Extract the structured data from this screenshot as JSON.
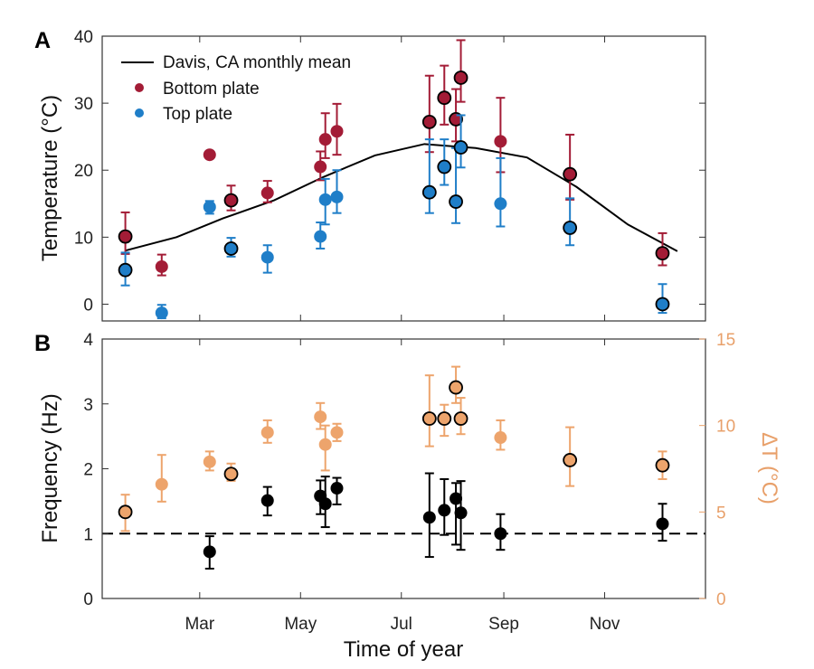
{
  "chart_data": [
    {
      "panel": "A",
      "type": "scatter",
      "ylabel": "Temperature (°C)",
      "ylim": [
        -2.5,
        40
      ],
      "yticks": [
        0,
        10,
        20,
        30,
        40
      ],
      "xlim": [
        1,
        366
      ],
      "legend": {
        "position": "top-left",
        "entries": [
          "Davis, CA monthly mean",
          "Bottom plate",
          "Top plate"
        ]
      },
      "series": [
        {
          "name": "Davis, CA monthly mean",
          "kind": "line",
          "color": "#000000",
          "x": [
            15,
            46,
            74,
            105,
            135,
            166,
            196,
            227,
            258,
            288,
            319,
            349
          ],
          "y": [
            8,
            10,
            12.8,
            15.5,
            19,
            22.2,
            23.9,
            23.3,
            21.9,
            17.5,
            11.9,
            7.9
          ]
        },
        {
          "name": "Bottom plate",
          "kind": "points",
          "color": "#a31c36",
          "points": [
            {
              "x": 15,
              "y": 10.1,
              "lo": 7.5,
              "hi": 13.7,
              "outlined": true
            },
            {
              "x": 37,
              "y": 5.6,
              "lo": 4.3,
              "hi": 7.4,
              "outlined": false
            },
            {
              "x": 66,
              "y": 22.3,
              "lo": 22.3,
              "hi": 22.3,
              "outlined": false
            },
            {
              "x": 79,
              "y": 15.5,
              "lo": 14.0,
              "hi": 17.7,
              "outlined": true
            },
            {
              "x": 101,
              "y": 16.6,
              "lo": 15.2,
              "hi": 18.4,
              "outlined": false
            },
            {
              "x": 133,
              "y": 20.5,
              "lo": 18.5,
              "hi": 22.8,
              "outlined": false
            },
            {
              "x": 136,
              "y": 24.6,
              "lo": 21.8,
              "hi": 28.5,
              "outlined": false
            },
            {
              "x": 143,
              "y": 25.8,
              "lo": 22.3,
              "hi": 29.9,
              "outlined": false
            },
            {
              "x": 199,
              "y": 27.2,
              "lo": 22.7,
              "hi": 34.1,
              "outlined": true
            },
            {
              "x": 208,
              "y": 30.8,
              "lo": 26.8,
              "hi": 35.6,
              "outlined": true
            },
            {
              "x": 215,
              "y": 27.6,
              "lo": 24.3,
              "hi": 32.1,
              "outlined": true
            },
            {
              "x": 218,
              "y": 33.8,
              "lo": 30.2,
              "hi": 39.4,
              "outlined": true
            },
            {
              "x": 242,
              "y": 24.3,
              "lo": 19.7,
              "hi": 30.8,
              "outlined": false
            },
            {
              "x": 284,
              "y": 19.4,
              "lo": 15.6,
              "hi": 25.3,
              "outlined": true
            },
            {
              "x": 340,
              "y": 7.6,
              "lo": 5.8,
              "hi": 10.6,
              "outlined": true
            }
          ]
        },
        {
          "name": "Top plate",
          "kind": "points",
          "color": "#1f7ec8",
          "points": [
            {
              "x": 15,
              "y": 5.1,
              "lo": 2.8,
              "hi": 7.7,
              "outlined": true
            },
            {
              "x": 37,
              "y": -1.3,
              "lo": -2.1,
              "hi": -0.1,
              "outlined": false
            },
            {
              "x": 66,
              "y": 14.5,
              "lo": 13.5,
              "hi": 15.4,
              "outlined": false
            },
            {
              "x": 79,
              "y": 8.3,
              "lo": 7.1,
              "hi": 9.9,
              "outlined": true
            },
            {
              "x": 101,
              "y": 7.0,
              "lo": 4.7,
              "hi": 8.8,
              "outlined": false
            },
            {
              "x": 133,
              "y": 10.1,
              "lo": 8.3,
              "hi": 12.2,
              "outlined": false
            },
            {
              "x": 136,
              "y": 15.6,
              "lo": 11.9,
              "hi": 18.7,
              "outlined": false
            },
            {
              "x": 143,
              "y": 16.0,
              "lo": 13.6,
              "hi": 20.0,
              "outlined": false
            },
            {
              "x": 199,
              "y": 16.7,
              "lo": 13.6,
              "hi": 24.6,
              "outlined": true
            },
            {
              "x": 208,
              "y": 20.5,
              "lo": 17.8,
              "hi": 24.6,
              "outlined": true
            },
            {
              "x": 215,
              "y": 15.3,
              "lo": 12.1,
              "hi": 23.3,
              "outlined": true
            },
            {
              "x": 218,
              "y": 23.4,
              "lo": 20.4,
              "hi": 28.2,
              "outlined": true
            },
            {
              "x": 242,
              "y": 15.0,
              "lo": 11.6,
              "hi": 21.8,
              "outlined": false
            },
            {
              "x": 284,
              "y": 11.4,
              "lo": 8.8,
              "hi": 15.8,
              "outlined": true
            },
            {
              "x": 340,
              "y": 0.0,
              "lo": -1.3,
              "hi": 3.0,
              "outlined": true
            }
          ]
        }
      ]
    },
    {
      "panel": "B",
      "type": "scatter",
      "xlabel": "Time of year",
      "ylabel": "Frequency (Hz)",
      "ylabel_right": "ΔT (°C)",
      "ylim": [
        0,
        4
      ],
      "yticks": [
        0,
        1,
        2,
        3,
        4
      ],
      "ylim_right": [
        0,
        15
      ],
      "yticks_right": [
        0,
        5,
        10,
        15
      ],
      "xlim": [
        1,
        366
      ],
      "xtick_positions": [
        60,
        121,
        182,
        244,
        305
      ],
      "xtick_labels": [
        "Mar",
        "May",
        "Jul",
        "Sep",
        "Nov"
      ],
      "reference_line": {
        "y": 1,
        "style": "dashed"
      },
      "series": [
        {
          "name": "Frequency",
          "axis": "left",
          "color": "#000000",
          "points": [
            {
              "x": 66,
              "y": 0.72,
              "lo": 0.46,
              "hi": 0.96
            },
            {
              "x": 101,
              "y": 1.51,
              "lo": 1.28,
              "hi": 1.72
            },
            {
              "x": 133,
              "y": 1.58,
              "lo": 1.3,
              "hi": 1.82
            },
            {
              "x": 136,
              "y": 1.46,
              "lo": 1.1,
              "hi": 1.88
            },
            {
              "x": 143,
              "y": 1.7,
              "lo": 1.45,
              "hi": 1.86
            },
            {
              "x": 199,
              "y": 1.25,
              "lo": 0.64,
              "hi": 1.93
            },
            {
              "x": 208,
              "y": 1.36,
              "lo": 0.98,
              "hi": 1.84
            },
            {
              "x": 215,
              "y": 1.54,
              "lo": 0.83,
              "hi": 1.78
            },
            {
              "x": 218,
              "y": 1.32,
              "lo": 0.75,
              "hi": 1.81
            },
            {
              "x": 242,
              "y": 1.0,
              "lo": 0.75,
              "hi": 1.3
            },
            {
              "x": 340,
              "y": 1.15,
              "lo": 0.89,
              "hi": 1.46
            }
          ]
        },
        {
          "name": "ΔT",
          "axis": "right",
          "color": "#eda46c",
          "points": [
            {
              "x": 15,
              "y": 5.0,
              "lo": 3.9,
              "hi": 6.0,
              "outlined": true
            },
            {
              "x": 37,
              "y": 6.6,
              "lo": 5.6,
              "hi": 8.3,
              "outlined": false
            },
            {
              "x": 66,
              "y": 7.9,
              "lo": 7.4,
              "hi": 8.5,
              "outlined": false
            },
            {
              "x": 79,
              "y": 7.2,
              "lo": 6.8,
              "hi": 7.8,
              "outlined": true
            },
            {
              "x": 101,
              "y": 9.6,
              "lo": 9.0,
              "hi": 10.3,
              "outlined": false
            },
            {
              "x": 133,
              "y": 10.5,
              "lo": 9.8,
              "hi": 11.3,
              "outlined": false
            },
            {
              "x": 136,
              "y": 8.9,
              "lo": 7.4,
              "hi": 10.0,
              "outlined": false
            },
            {
              "x": 143,
              "y": 9.6,
              "lo": 9.1,
              "hi": 10.1,
              "outlined": false
            },
            {
              "x": 199,
              "y": 10.4,
              "lo": 8.8,
              "hi": 12.9,
              "outlined": true
            },
            {
              "x": 208,
              "y": 10.4,
              "lo": 9.4,
              "hi": 11.2,
              "outlined": true
            },
            {
              "x": 215,
              "y": 12.2,
              "lo": 11.3,
              "hi": 13.4,
              "outlined": true
            },
            {
              "x": 218,
              "y": 10.4,
              "lo": 9.5,
              "hi": 11.6,
              "outlined": true
            },
            {
              "x": 242,
              "y": 9.3,
              "lo": 8.6,
              "hi": 10.3,
              "outlined": false
            },
            {
              "x": 284,
              "y": 8.0,
              "lo": 6.5,
              "hi": 9.9,
              "outlined": true
            },
            {
              "x": 340,
              "y": 7.7,
              "lo": 6.9,
              "hi": 8.5,
              "outlined": true
            }
          ]
        }
      ]
    }
  ]
}
